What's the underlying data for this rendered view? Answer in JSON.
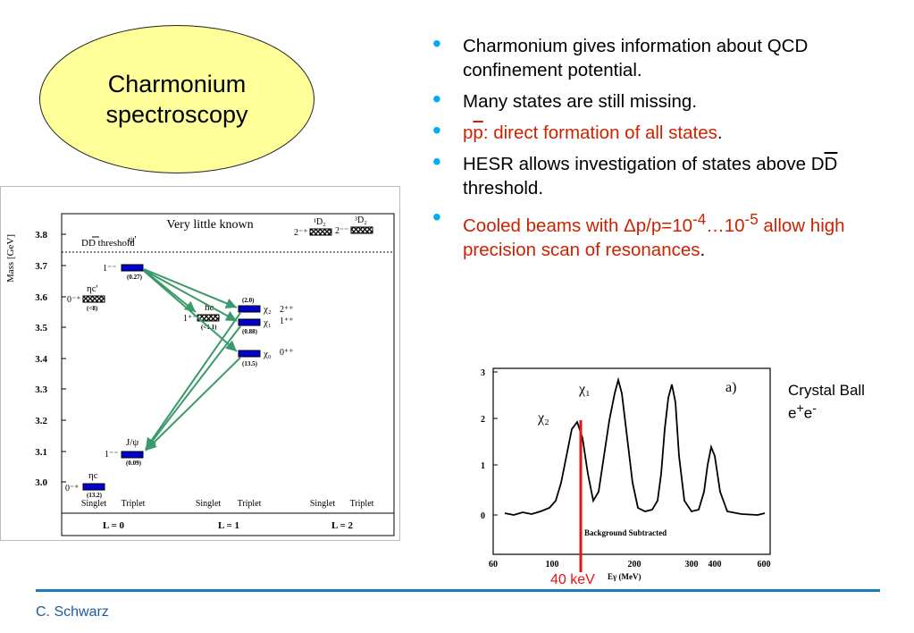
{
  "title": "Charmonium spectroscopy",
  "bullets": [
    {
      "text": "Charmonium gives information about QCD confinement potential."
    },
    {
      "text": "Many states are still missing."
    },
    {
      "pre": "p",
      "ov": "p",
      "red": ": direct formation of all states",
      "tail": "."
    },
    {
      "pre": "HESR allows investigation of states above D",
      "ov": "D",
      "tail": " threshold."
    },
    {
      "red1": "Cooled beams with Δp/p=10",
      "sup1": "-4",
      "red2": "…10",
      "sup2": "-5",
      "red3": " allow high precision scan of resonances",
      "tail": "."
    }
  ],
  "diagram": {
    "ylabel": "Mass [GeV]",
    "header": "Very little known",
    "threshold_label": "DD threshold",
    "yticks": [
      "3.8",
      "3.7",
      "3.6",
      "3.5",
      "3.4",
      "3.3",
      "3.2",
      "3.1",
      "3.0"
    ],
    "states": [
      {
        "name": "ψ'",
        "jpc": "1⁻⁻",
        "width": "(0.27)"
      },
      {
        "name": "ηc'",
        "jpc": "0⁻⁺",
        "width": "(<8)"
      },
      {
        "name": "hc",
        "jpc": "1⁺⁻",
        "width": "(<1.1)"
      },
      {
        "name": "χ₂",
        "jpc": "2⁺⁺",
        "width": "(2.0)"
      },
      {
        "name": "χ₁",
        "jpc": "1⁺⁺",
        "width": "(0.88)"
      },
      {
        "name": "χ₀",
        "jpc": "0⁺⁺",
        "width": "(13.5)"
      },
      {
        "name": "J/ψ",
        "jpc": "1⁻⁻",
        "width": "(0.09)"
      },
      {
        "name": "ηc",
        "jpc": "0⁻⁺",
        "width": "(13.2)"
      },
      {
        "name": "¹D₂",
        "jpc": "2⁻⁺"
      },
      {
        "name": "³D₂",
        "jpc": "2⁻⁻"
      }
    ],
    "columns": [
      "Singlet",
      "Triplet",
      "Singlet",
      "Triplet",
      "Singlet",
      "Triplet"
    ],
    "groups": [
      "L = 0",
      "L = 1",
      "L = 2"
    ]
  },
  "spectrum": {
    "yticks": [
      "3",
      "2",
      "1",
      "0"
    ],
    "xticks": [
      "60",
      "100",
      "200",
      "300",
      "400",
      "600"
    ],
    "xlabel": "Eγ   (MeV)",
    "inner_label": "Background Subtracted",
    "peak_labels": [
      "χ₁",
      "χ₂"
    ],
    "panel": "a)",
    "caption_line1": "Crystal Ball",
    "caption_e": "e",
    "caption_sup1": "+",
    "caption_sup2": "-",
    "marker_label": "40 keV"
  },
  "footer": "C. Schwarz",
  "colors": {
    "accent": "#00aeef",
    "highlight": "#cc2200",
    "oval": "#ffff99",
    "footer_line": "#1a7bb9",
    "arrow": "#3a9a6a",
    "level": "#0000cc"
  }
}
